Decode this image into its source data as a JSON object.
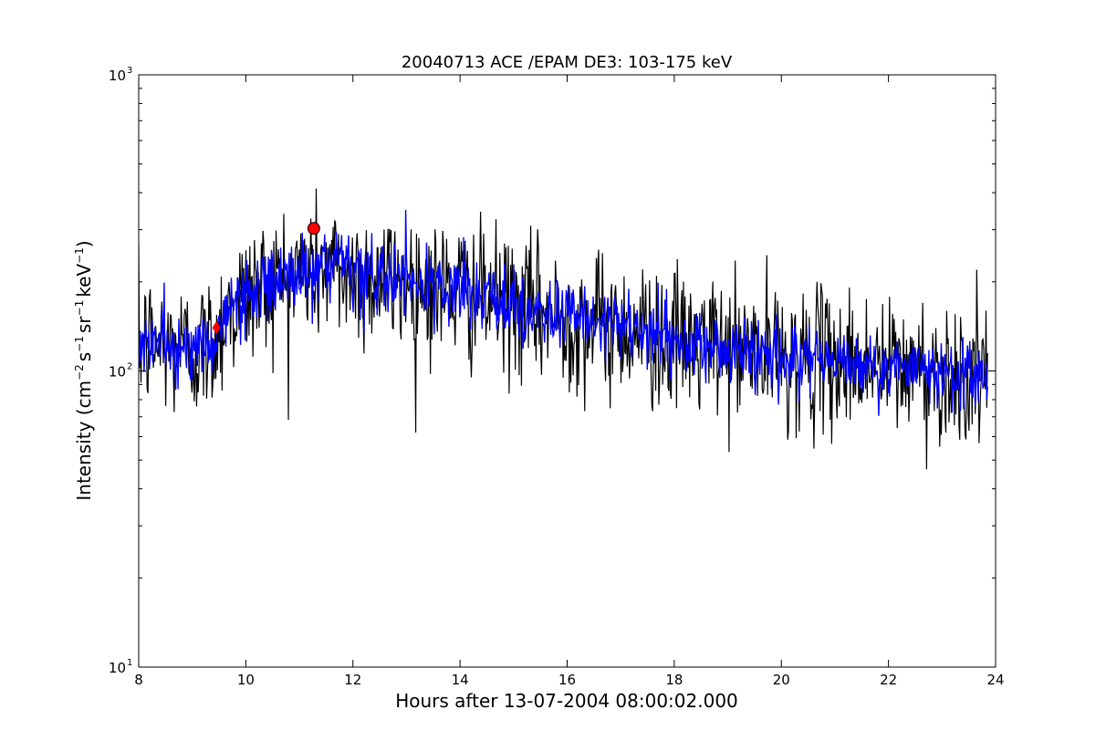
{
  "chart_data": {
    "type": "line",
    "title": "20040713 ACE /EPAM DE3: 103-175 keV",
    "xlabel": "Hours after 13-07-2004 08:00:02.000",
    "ylabel": "Intensity (cm^-2 s^-1 sr^-1 keV^-1)",
    "ylabel_parts": {
      "prefix": "Intensity (cm",
      "exp1": "−2",
      "mid1": "s",
      "exp2": "−1",
      "mid2": "sr",
      "exp3": "−1",
      "mid3": "keV",
      "exp4": "−1",
      "suffix": ")"
    },
    "xlim": [
      8,
      24
    ],
    "ylim": [
      10,
      1000
    ],
    "yscale": "log",
    "grid": false,
    "x_ticks": [
      8,
      10,
      12,
      14,
      16,
      18,
      20,
      22,
      24
    ],
    "x_tick_labels": [
      "8",
      "10",
      "12",
      "14",
      "16",
      "18",
      "20",
      "22",
      "24"
    ],
    "y_ticks": [
      10,
      100,
      1000
    ],
    "y_tick_labels": [
      {
        "base": "10",
        "exp": "1"
      },
      {
        "base": "10",
        "exp": "2"
      },
      {
        "base": "10",
        "exp": "3"
      }
    ],
    "series": [
      {
        "color": "#000000",
        "x_start": 8.0,
        "x_end": 23.85,
        "profile": [
          [
            8.0,
            125
          ],
          [
            8.5,
            122
          ],
          [
            9.0,
            118
          ],
          [
            9.3,
            120
          ],
          [
            9.5,
            140
          ],
          [
            9.7,
            160
          ],
          [
            10.0,
            180
          ],
          [
            10.5,
            200
          ],
          [
            11.0,
            215
          ],
          [
            11.5,
            220
          ],
          [
            12.0,
            210
          ],
          [
            13.0,
            200
          ],
          [
            14.0,
            185
          ],
          [
            15.0,
            165
          ],
          [
            16.0,
            150
          ],
          [
            17.0,
            140
          ],
          [
            18.0,
            125
          ],
          [
            19.0,
            118
          ],
          [
            20.0,
            112
          ],
          [
            21.0,
            108
          ],
          [
            22.0,
            103
          ],
          [
            23.0,
            98
          ],
          [
            23.85,
            95
          ]
        ],
        "noise_sigma_log10": 0.12
      },
      {
        "color": "#0000ff",
        "x_start": 8.0,
        "x_end": 23.85,
        "profile": [
          [
            8.0,
            125
          ],
          [
            8.5,
            122
          ],
          [
            9.0,
            118
          ],
          [
            9.3,
            120
          ],
          [
            9.5,
            140
          ],
          [
            9.7,
            160
          ],
          [
            10.0,
            180
          ],
          [
            10.5,
            200
          ],
          [
            11.0,
            215
          ],
          [
            11.5,
            220
          ],
          [
            12.0,
            210
          ],
          [
            13.0,
            200
          ],
          [
            14.0,
            185
          ],
          [
            15.0,
            165
          ],
          [
            16.0,
            150
          ],
          [
            17.0,
            140
          ],
          [
            18.0,
            125
          ],
          [
            19.0,
            118
          ],
          [
            20.0,
            112
          ],
          [
            21.0,
            108
          ],
          [
            22.0,
            103
          ],
          [
            23.0,
            98
          ],
          [
            23.85,
            95
          ]
        ],
        "noise_sigma_log10": 0.06
      }
    ],
    "markers": [
      {
        "x": 9.45,
        "y": 140,
        "color": "#ff0000",
        "shape": "diamond"
      },
      {
        "x": 11.27,
        "y": 303,
        "color": "#ff0000",
        "shape": "circle"
      }
    ]
  }
}
